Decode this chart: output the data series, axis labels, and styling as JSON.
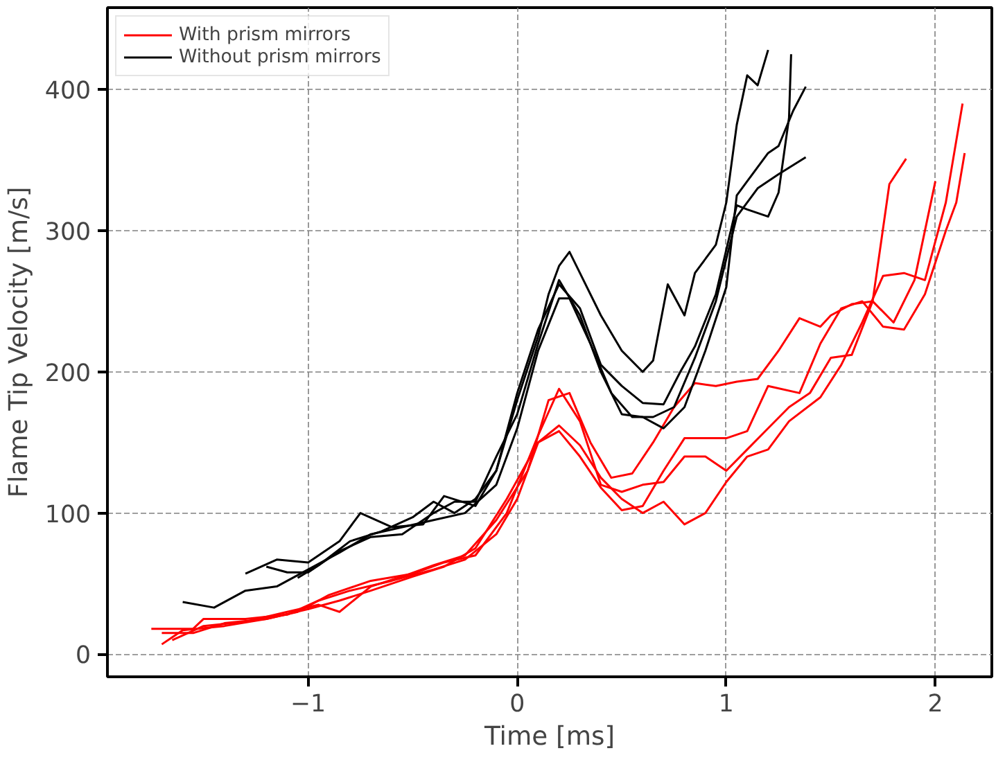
{
  "chart_data": {
    "type": "line",
    "xlabel": "Time [ms]",
    "ylabel": "Flame Tip Velocity [m/s]",
    "xlim": [
      -1.96,
      2.27
    ],
    "ylim": [
      -16,
      458
    ],
    "xticks": [
      {
        "value": -1,
        "label": "−1"
      },
      0,
      1,
      2
    ],
    "yticks": [
      0,
      100,
      200,
      300,
      400
    ],
    "grid": true,
    "legend": "top left",
    "line_style": "solid",
    "series": [
      {
        "name": "With prism mirrors",
        "color": "#ff0000",
        "x": [
          -1.75,
          -1.55,
          -1.5,
          -1.3,
          -1.1,
          -0.95,
          -0.8,
          -0.6,
          -0.4,
          -0.25,
          -0.1,
          0,
          0.1,
          0.2,
          0.3,
          0.4,
          0.5,
          0.6,
          0.7,
          0.8,
          0.9,
          1.0,
          1.1,
          1.2,
          1.3,
          1.45,
          1.55,
          1.65,
          1.75,
          1.85,
          1.95,
          2.05,
          2.13
        ],
        "values": [
          18,
          18,
          25,
          25,
          28,
          38,
          45,
          52,
          60,
          67,
          85,
          110,
          150,
          162,
          148,
          125,
          110,
          100,
          108,
          92,
          100,
          122,
          140,
          145,
          165,
          182,
          205,
          235,
          268,
          270,
          265,
          320,
          390
        ]
      },
      {
        "color": "#ff0000",
        "x": [
          -1.7,
          -1.6,
          -1.4,
          -1.2,
          -1.05,
          -0.9,
          -0.7,
          -0.5,
          -0.35,
          -0.2,
          -0.05,
          0.1,
          0.2,
          0.3,
          0.4,
          0.5,
          0.6,
          0.7,
          0.8,
          0.9,
          1.0,
          1.1,
          1.2,
          1.3,
          1.4,
          1.5,
          1.6,
          1.7,
          1.78,
          1.86
        ],
        "values": [
          7,
          17,
          20,
          25,
          30,
          42,
          52,
          57,
          65,
          70,
          100,
          155,
          188,
          165,
          120,
          115,
          120,
          122,
          140,
          140,
          130,
          145,
          160,
          175,
          185,
          210,
          212,
          250,
          333,
          351
        ]
      },
      {
        "color": "#ff0000",
        "x": [
          -1.65,
          -1.5,
          -1.3,
          -1.1,
          -0.95,
          -0.85,
          -0.7,
          -0.55,
          -0.4,
          -0.25,
          -0.1,
          0.05,
          0.15,
          0.25,
          0.35,
          0.45,
          0.55,
          0.65,
          0.75,
          0.85,
          0.95,
          1.05,
          1.15,
          1.25,
          1.35,
          1.45,
          1.5,
          1.6,
          1.7,
          1.8,
          1.9,
          2.0
        ],
        "values": [
          10,
          20,
          23,
          30,
          35,
          30,
          48,
          55,
          63,
          70,
          95,
          130,
          180,
          185,
          150,
          125,
          128,
          150,
          175,
          192,
          190,
          193,
          195,
          215,
          238,
          232,
          240,
          248,
          250,
          235,
          265,
          335
        ]
      },
      {
        "color": "#ff0000",
        "x": [
          -1.7,
          -1.55,
          -1.4,
          -1.2,
          -1.0,
          -0.85,
          -0.7,
          -0.5,
          -0.35,
          -0.2,
          -0.05,
          0.1,
          0.2,
          0.3,
          0.4,
          0.5,
          0.6,
          0.7,
          0.8,
          0.9,
          1.0,
          1.1,
          1.2,
          1.35,
          1.45,
          1.55,
          1.65,
          1.75,
          1.85,
          1.95,
          2.05,
          2.1,
          2.14
        ],
        "values": [
          15,
          15,
          22,
          25,
          32,
          38,
          45,
          55,
          62,
          75,
          110,
          150,
          158,
          140,
          118,
          102,
          105,
          130,
          153,
          153,
          153,
          158,
          190,
          185,
          220,
          245,
          250,
          232,
          230,
          255,
          300,
          320,
          355
        ]
      },
      {
        "name": "Without prism mirrors",
        "color": "#000000",
        "x": [
          -1.6,
          -1.45,
          -1.3,
          -1.15,
          -1.0,
          -0.85,
          -0.7,
          -0.55,
          -0.4,
          -0.25,
          -0.1,
          0,
          0.1,
          0.2,
          0.25,
          0.35,
          0.45,
          0.55,
          0.65,
          0.75,
          0.85,
          0.95,
          1.05,
          1.15,
          1.25,
          1.38
        ],
        "values": [
          37,
          33,
          45,
          48,
          60,
          72,
          85,
          90,
          95,
          100,
          120,
          160,
          215,
          252,
          252,
          220,
          185,
          168,
          168,
          175,
          210,
          250,
          310,
          330,
          340,
          352
        ]
      },
      {
        "color": "#000000",
        "x": [
          -1.05,
          -0.95,
          -0.8,
          -0.65,
          -0.5,
          -0.4,
          -0.3,
          -0.2,
          -0.1,
          0,
          0.1,
          0.15,
          0.2,
          0.25,
          0.3,
          0.4,
          0.5,
          0.6,
          0.65,
          0.72,
          0.8,
          0.85,
          0.95,
          1.0,
          1.05,
          1.1,
          1.15,
          1.2
        ],
        "values": [
          54,
          63,
          80,
          87,
          97,
          108,
          100,
          110,
          130,
          180,
          225,
          255,
          275,
          285,
          270,
          240,
          215,
          200,
          208,
          262,
          240,
          270,
          290,
          320,
          375,
          410,
          403,
          428
        ]
      },
      {
        "color": "#000000",
        "x": [
          -1.2,
          -1.1,
          -1.0,
          -0.85,
          -0.7,
          -0.55,
          -0.4,
          -0.3,
          -0.2,
          -0.1,
          0,
          0.1,
          0.2,
          0.3,
          0.4,
          0.5,
          0.6,
          0.7,
          0.8,
          0.9,
          1.0,
          1.05,
          1.1,
          1.2,
          1.25,
          1.32,
          1.38
        ],
        "values": [
          62,
          58,
          58,
          73,
          83,
          85,
          100,
          108,
          108,
          140,
          170,
          220,
          265,
          240,
          200,
          170,
          168,
          160,
          175,
          215,
          260,
          325,
          335,
          355,
          360,
          385,
          402
        ]
      },
      {
        "color": "#000000",
        "x": [
          -1.3,
          -1.15,
          -1.0,
          -0.85,
          -0.75,
          -0.6,
          -0.45,
          -0.35,
          -0.2,
          -0.1,
          0,
          0.1,
          0.2,
          0.3,
          0.4,
          0.5,
          0.6,
          0.7,
          0.78,
          0.85,
          0.95,
          1.05,
          1.1,
          1.2,
          1.25,
          1.3,
          1.31
        ],
        "values": [
          57,
          67,
          65,
          80,
          100,
          90,
          92,
          112,
          105,
          130,
          185,
          230,
          262,
          245,
          205,
          190,
          178,
          177,
          200,
          218,
          255,
          318,
          315,
          310,
          327,
          380,
          425
        ]
      }
    ]
  }
}
